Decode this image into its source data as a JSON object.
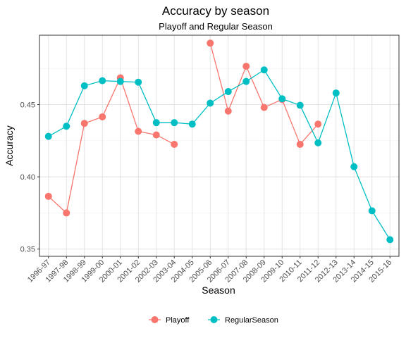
{
  "chart_data": {
    "type": "line",
    "title": "Accuracy by season",
    "subtitle": "Playoff and Regular Season",
    "xlabel": "Season",
    "ylabel": "Accuracy",
    "categories": [
      "1996-97",
      "1997-98",
      "1998-99",
      "1999-00",
      "2000-01",
      "2001-02",
      "2002-03",
      "2003-04",
      "2004-05",
      "2005-06",
      "2006-07",
      "2007-08",
      "2008-09",
      "2009-10",
      "2010-11",
      "2011-12",
      "2012-13",
      "2013-14",
      "2014-15",
      "2015-16"
    ],
    "ylim": [
      0.345,
      0.498
    ],
    "yticks": [
      0.35,
      0.4,
      0.45
    ],
    "ytick_labels": [
      "0.35",
      "0.40",
      "0.45"
    ],
    "grid": true,
    "legend_position": "bottom",
    "series": [
      {
        "name": "Playoff",
        "color": "#F8766D",
        "values": [
          0.3865,
          0.375,
          0.437,
          0.4415,
          0.4685,
          0.4315,
          0.429,
          0.4225,
          null,
          0.4925,
          0.4455,
          0.4765,
          0.448,
          0.4535,
          0.4225,
          0.4365,
          null,
          null,
          null,
          null
        ]
      },
      {
        "name": "RegularSeason",
        "color": "#00BFC4",
        "values": [
          0.428,
          0.435,
          0.463,
          0.4665,
          0.466,
          0.4655,
          0.4375,
          0.4375,
          0.4365,
          0.451,
          0.459,
          0.466,
          0.474,
          0.454,
          0.4495,
          0.4235,
          0.458,
          0.407,
          0.3765,
          0.3565
        ]
      }
    ]
  }
}
